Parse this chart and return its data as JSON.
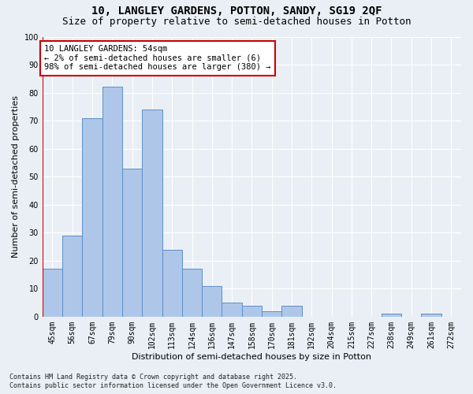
{
  "title1": "10, LANGLEY GARDENS, POTTON, SANDY, SG19 2QF",
  "title2": "Size of property relative to semi-detached houses in Potton",
  "xlabel": "Distribution of semi-detached houses by size in Potton",
  "ylabel": "Number of semi-detached properties",
  "footnote": "Contains HM Land Registry data © Crown copyright and database right 2025.\nContains public sector information licensed under the Open Government Licence v3.0.",
  "categories": [
    "45sqm",
    "56sqm",
    "67sqm",
    "79sqm",
    "90sqm",
    "102sqm",
    "113sqm",
    "124sqm",
    "136sqm",
    "147sqm",
    "158sqm",
    "170sqm",
    "181sqm",
    "192sqm",
    "204sqm",
    "215sqm",
    "227sqm",
    "238sqm",
    "249sqm",
    "261sqm",
    "272sqm"
  ],
  "values": [
    17,
    29,
    71,
    82,
    53,
    74,
    24,
    17,
    11,
    5,
    4,
    2,
    4,
    0,
    0,
    0,
    0,
    1,
    0,
    1,
    0
  ],
  "bar_color": "#aec6e8",
  "bar_edge_color": "#5b8fc9",
  "highlight_line_color": "#cc0000",
  "annotation_text": "10 LANGLEY GARDENS: 54sqm\n← 2% of semi-detached houses are smaller (6)\n98% of semi-detached houses are larger (380) →",
  "annotation_box_color": "#ffffff",
  "annotation_box_edge_color": "#cc0000",
  "ylim": [
    0,
    100
  ],
  "yticks": [
    0,
    10,
    20,
    30,
    40,
    50,
    60,
    70,
    80,
    90,
    100
  ],
  "background_color": "#eaeff5",
  "grid_color": "#ffffff",
  "title1_fontsize": 10,
  "title2_fontsize": 9,
  "xlabel_fontsize": 8,
  "ylabel_fontsize": 8,
  "tick_fontsize": 7,
  "annotation_fontsize": 7.5,
  "footnote_fontsize": 6
}
